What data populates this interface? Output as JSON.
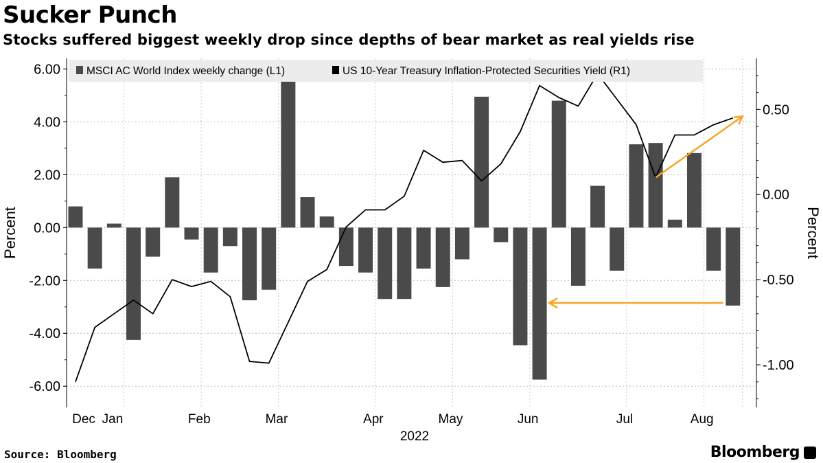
{
  "title": "Sucker Punch",
  "subtitle": "Stocks suffered biggest weekly drop since depths of bear market as real yields rise",
  "source": "Source: Bloomberg",
  "brand": "Bloomberg",
  "chart_data": {
    "type": "bar+line",
    "left_axis": {
      "label": "Percent",
      "ylim": [
        -6.8,
        6.4
      ],
      "ticks": [
        6,
        4,
        2,
        0,
        -2,
        -4,
        -6
      ],
      "tick_labels": [
        "6.00",
        "4.00",
        "2.00",
        "0.00",
        "-2.00",
        "-4.00",
        "-6.00"
      ]
    },
    "right_axis": {
      "label": "Percent",
      "ylim": [
        -1.25,
        0.8
      ],
      "ticks": [
        0.5,
        0,
        -0.5,
        -1
      ],
      "tick_labels": [
        "0.50",
        "0.00",
        "-0.50",
        "-1.00"
      ]
    },
    "x_axis": {
      "month_labels": [
        "Dec",
        "Jan",
        "Feb",
        "Mar",
        "Apr",
        "May",
        "Jun",
        "Jul",
        "Aug"
      ],
      "month_label_week": [
        0,
        2,
        6,
        10,
        15,
        19,
        23,
        28,
        32
      ],
      "year_label": "2022",
      "weeks": 36
    },
    "series": [
      {
        "name": "MSCI AC World Index weekly change (L1)",
        "type": "bar",
        "axis": "left",
        "color": "#4a4a4a",
        "values": [
          0.8,
          -1.55,
          0.15,
          -4.25,
          -1.1,
          1.9,
          -0.45,
          -1.7,
          -0.7,
          -2.75,
          -2.35,
          5.7,
          1.15,
          0.42,
          -1.45,
          -1.7,
          -2.7,
          -2.7,
          -1.55,
          -2.25,
          -1.2,
          4.95,
          -0.55,
          -4.45,
          -5.75,
          4.8,
          -2.2,
          1.58,
          -1.63,
          3.15,
          3.2,
          0.3,
          2.82,
          -1.63,
          -2.95
        ]
      },
      {
        "name": "US 10-Year Treasury Inflation-Protected Securities Yield (R1)",
        "type": "line",
        "axis": "right",
        "color": "#000000",
        "values": [
          -1.1,
          -0.78,
          -0.7,
          -0.62,
          -0.7,
          -0.5,
          -0.54,
          -0.51,
          -0.6,
          -0.98,
          -0.99,
          -0.75,
          -0.51,
          -0.44,
          -0.19,
          -0.09,
          -0.09,
          -0.01,
          0.26,
          0.19,
          0.2,
          0.08,
          0.18,
          0.37,
          0.64,
          0.57,
          0.52,
          0.71,
          0.56,
          0.41,
          0.1,
          0.35,
          0.35,
          0.41,
          0.45
        ]
      }
    ],
    "legend_position": "top-left",
    "annotations": [
      {
        "type": "arrow",
        "color": "#f5a623",
        "from_week": 33.5,
        "to_week": 24.5,
        "value_left": -2.85
      },
      {
        "type": "arrow",
        "color": "#f5a623",
        "from_week": 30,
        "from_value_right": 0.1,
        "to_week": 34.5,
        "to_value_right": 0.46
      }
    ]
  }
}
